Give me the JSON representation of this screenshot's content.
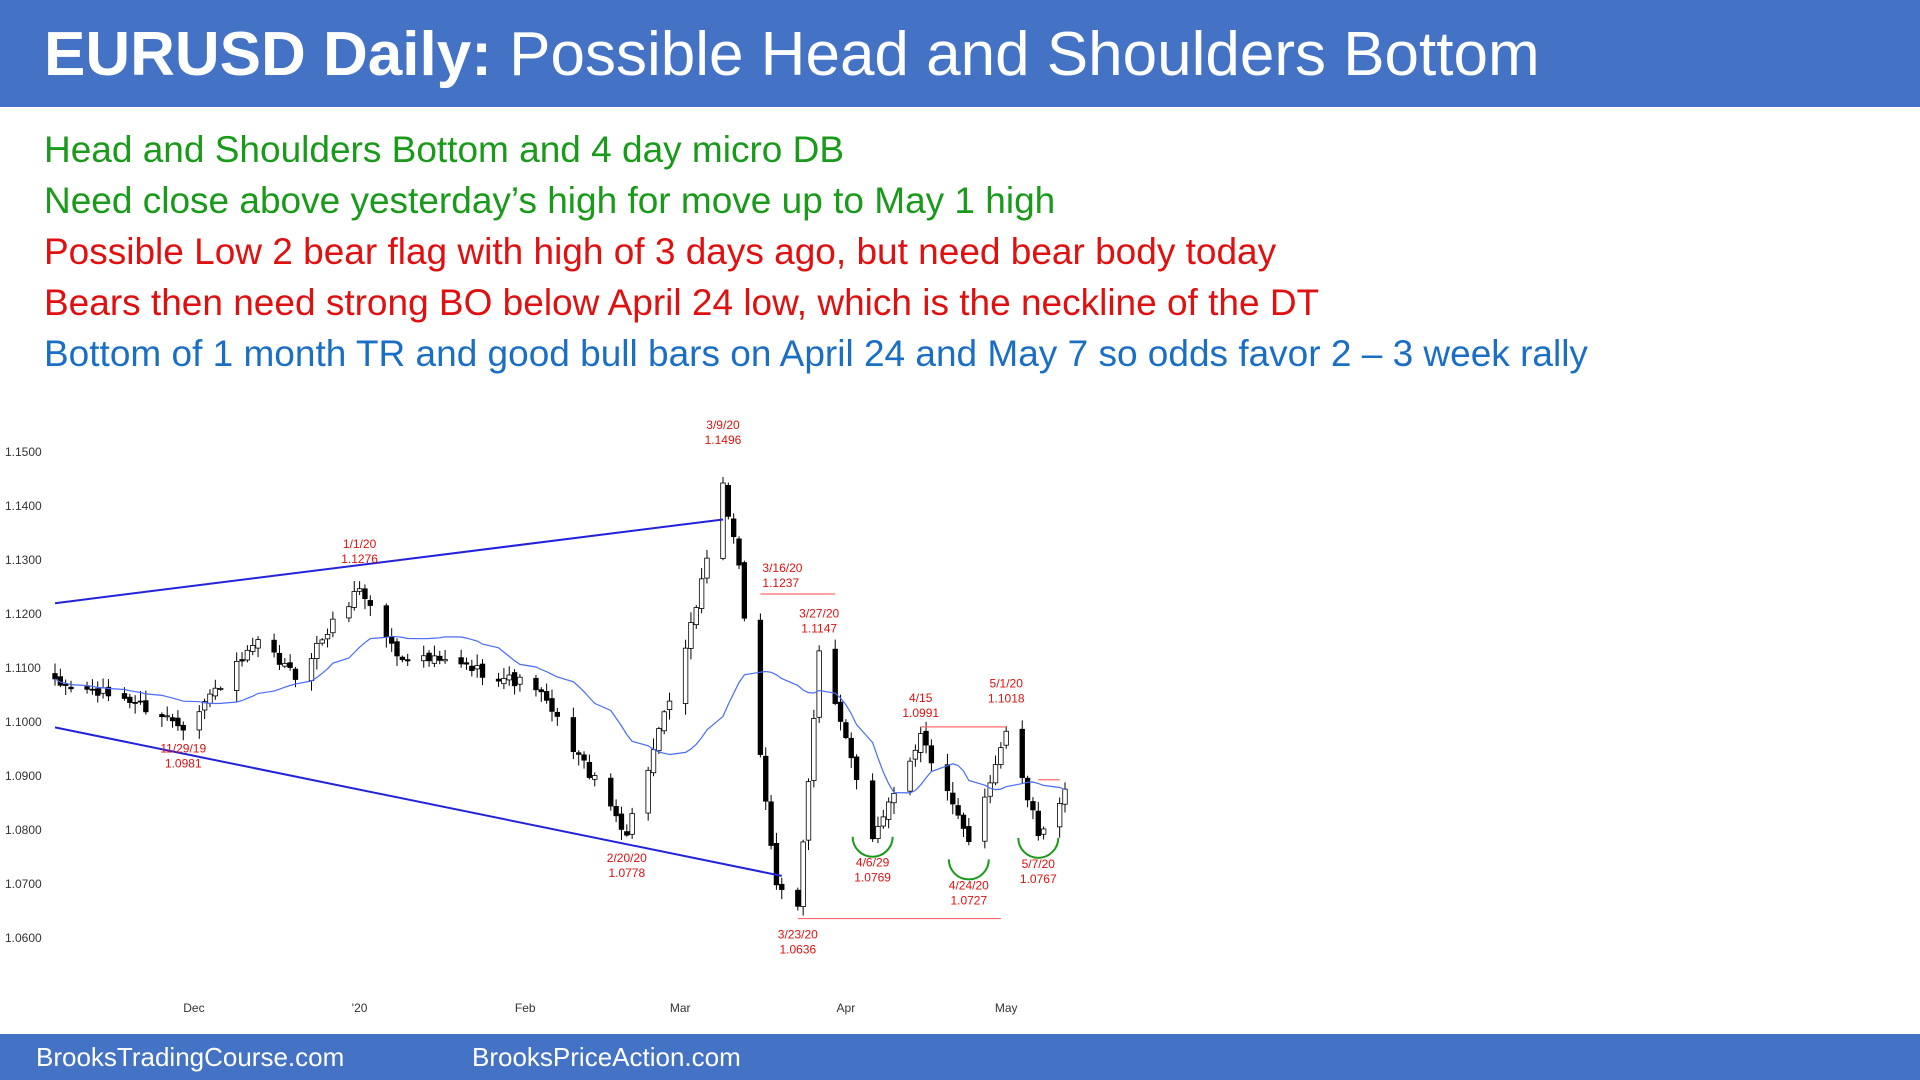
{
  "header": {
    "title_bold": "EURUSD Daily:",
    "title_rest": "Possible Head and Shoulders Bottom"
  },
  "notes": [
    {
      "text": "Head and Shoulders Bottom and 4 day micro DB",
      "color": "#1a9a1a"
    },
    {
      "text": "Need close above yesterday’s high for move up to May 1 high",
      "color": "#1a9a1a"
    },
    {
      "text": "Possible Low 2 bear flag with high of 3 days ago, but need bear body today",
      "color": "#e01010"
    },
    {
      "text": "Bears then need strong BO below April 24 low, which is the neckline of the DT",
      "color": "#e01010"
    },
    {
      "text": "Bottom of 1 month TR and good bull bars on April 24 and May 7 so odds favor 2 – 3 week rally",
      "color": "#1a6fc4"
    }
  ],
  "footer": {
    "left": "BrooksTradingCourse.com",
    "right": "BrooksPriceAction.com"
  },
  "chart_data": {
    "type": "candlestick",
    "title": "EURUSD Daily",
    "ylim": [
      1.055,
      1.155
    ],
    "y_ticks": [
      "1.1500",
      "1.1400",
      "1.1300",
      "1.1200",
      "1.1100",
      "1.1000",
      "1.0900",
      "1.0800",
      "1.0700",
      "1.0600"
    ],
    "x_ticks": [
      {
        "label": "Dec",
        "date": "2019-12-01"
      },
      {
        "label": "'20",
        "date": "2020-01-01"
      },
      {
        "label": "Feb",
        "date": "2020-02-01"
      },
      {
        "label": "Mar",
        "date": "2020-03-01"
      },
      {
        "label": "Apr",
        "date": "2020-04-01"
      },
      {
        "label": "May",
        "date": "2020-05-01"
      }
    ],
    "x_range": [
      "2019-11-05",
      "2020-05-12"
    ],
    "moving_average_color": "#4a6cf7",
    "waypoints": [
      {
        "date": "2019-11-05",
        "price": 1.107
      },
      {
        "date": "2019-11-18",
        "price": 1.1045
      },
      {
        "date": "2019-11-29",
        "price": 1.0995
      },
      {
        "date": "2019-12-13",
        "price": 1.1145
      },
      {
        "date": "2019-12-20",
        "price": 1.1085
      },
      {
        "date": "2020-01-01",
        "price": 1.125
      },
      {
        "date": "2020-01-08",
        "price": 1.1125
      },
      {
        "date": "2020-01-20",
        "price": 1.1105
      },
      {
        "date": "2020-02-03",
        "price": 1.1065
      },
      {
        "date": "2020-02-20",
        "price": 1.0795
      },
      {
        "date": "2020-03-02",
        "price": 1.113
      },
      {
        "date": "2020-03-09",
        "price": 1.144
      },
      {
        "date": "2020-03-12",
        "price": 1.128
      },
      {
        "date": "2020-03-19",
        "price": 1.069
      },
      {
        "date": "2020-03-23",
        "price": 1.0655
      },
      {
        "date": "2020-03-27",
        "price": 1.1135
      },
      {
        "date": "2020-04-06",
        "price": 1.079
      },
      {
        "date": "2020-04-15",
        "price": 1.0975
      },
      {
        "date": "2020-04-24",
        "price": 1.0775
      },
      {
        "date": "2020-05-01",
        "price": 1.0985
      },
      {
        "date": "2020-05-07",
        "price": 1.0795
      },
      {
        "date": "2020-05-12",
        "price": 1.0865
      }
    ],
    "trendlines": [
      {
        "color": "#2222dd",
        "from": {
          "date": "2019-11-05",
          "price": 1.122
        },
        "to": {
          "date": "2020-03-09",
          "price": 1.1375
        }
      },
      {
        "color": "#2222dd",
        "from": {
          "date": "2019-11-05",
          "price": 1.099
        },
        "to": {
          "date": "2020-03-20",
          "price": 1.0715
        }
      }
    ],
    "hlines": [
      {
        "color": "#ff6b6b",
        "from": "2020-03-16",
        "to": "2020-03-30",
        "price": 1.1237
      },
      {
        "color": "#ff6b6b",
        "from": "2020-04-15",
        "to": "2020-05-01",
        "price": 1.0991
      },
      {
        "color": "#ff6b6b",
        "from": "2020-05-07",
        "to": "2020-05-11",
        "price": 1.0893
      },
      {
        "color": "#ff6b6b",
        "from": "2020-03-23",
        "to": "2020-04-30",
        "price": 1.0636
      }
    ],
    "arcs": [
      {
        "date": "2020-04-06",
        "price": 1.0769
      },
      {
        "date": "2020-04-24",
        "price": 1.0727
      },
      {
        "date": "2020-05-07",
        "price": 1.0767
      }
    ],
    "annotations": [
      {
        "date_label": "11/29/19",
        "value": "1.0981",
        "date": "2019-11-29",
        "price": 1.0981,
        "pos": "below"
      },
      {
        "date_label": "1/1/20",
        "value": "1.1276",
        "date": "2020-01-01",
        "price": 1.1276,
        "pos": "above"
      },
      {
        "date_label": "2/20/20",
        "value": "1.0778",
        "date": "2020-02-20",
        "price": 1.0778,
        "pos": "below"
      },
      {
        "date_label": "3/9/20",
        "value": "1.1496",
        "date": "2020-03-09",
        "price": 1.1496,
        "pos": "above"
      },
      {
        "date_label": "3/16/20",
        "value": "1.1237",
        "date": "2020-03-16",
        "price": 1.1237,
        "pos": "above-right"
      },
      {
        "date_label": "3/27/20",
        "value": "1.1147",
        "date": "2020-03-27",
        "price": 1.1147,
        "pos": "above"
      },
      {
        "date_label": "3/23/20",
        "value": "1.0636",
        "date": "2020-03-23",
        "price": 1.0636,
        "pos": "below"
      },
      {
        "date_label": "4/6/29",
        "value": "1.0769",
        "date": "2020-04-06",
        "price": 1.0769,
        "pos": "below"
      },
      {
        "date_label": "4/15",
        "value": "1.0991",
        "date": "2020-04-15",
        "price": 1.0991,
        "pos": "above"
      },
      {
        "date_label": "4/24/20",
        "value": "1.0727",
        "date": "2020-04-24",
        "price": 1.0727,
        "pos": "below"
      },
      {
        "date_label": "5/1/20",
        "value": "1.1018",
        "date": "2020-05-01",
        "price": 1.1018,
        "pos": "above"
      },
      {
        "date_label": "5/7/20",
        "value": "1.0767",
        "date": "2020-05-07",
        "price": 1.0767,
        "pos": "below"
      }
    ]
  }
}
